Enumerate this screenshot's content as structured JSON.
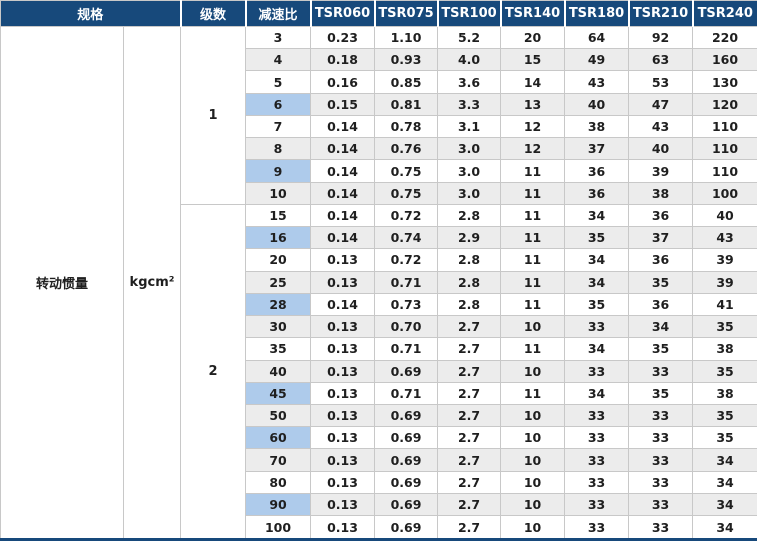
{
  "header": {
    "spec_label": "规格",
    "stage_label": "级数",
    "ratio_label": "减速比",
    "models": [
      "TSR060",
      "TSR075",
      "TSR100",
      "TSR140",
      "TSR180",
      "TSR210",
      "TSR240"
    ]
  },
  "spec": {
    "name": "转动惯量",
    "unit": "kgcm²"
  },
  "colors": {
    "header_bg": "#17497b",
    "header_text": "#ffffff",
    "row_alt_bg": "#ececec",
    "highlight_bg": "#aecbeb",
    "border": "#c8c8c8",
    "bottom_border": "#17497b",
    "body_text": "#1f1f1f"
  },
  "sections": [
    {
      "stage": "1",
      "rows": [
        {
          "ratio": "3",
          "highlight": false,
          "values": [
            "0.23",
            "1.10",
            "5.2",
            "20",
            "64",
            "92",
            "220"
          ]
        },
        {
          "ratio": "4",
          "highlight": false,
          "values": [
            "0.18",
            "0.93",
            "4.0",
            "15",
            "49",
            "63",
            "160"
          ]
        },
        {
          "ratio": "5",
          "highlight": false,
          "values": [
            "0.16",
            "0.85",
            "3.6",
            "14",
            "43",
            "53",
            "130"
          ]
        },
        {
          "ratio": "6",
          "highlight": true,
          "values": [
            "0.15",
            "0.81",
            "3.3",
            "13",
            "40",
            "47",
            "120"
          ]
        },
        {
          "ratio": "7",
          "highlight": false,
          "values": [
            "0.14",
            "0.78",
            "3.1",
            "12",
            "38",
            "43",
            "110"
          ]
        },
        {
          "ratio": "8",
          "highlight": false,
          "values": [
            "0.14",
            "0.76",
            "3.0",
            "12",
            "37",
            "40",
            "110"
          ]
        },
        {
          "ratio": "9",
          "highlight": true,
          "values": [
            "0.14",
            "0.75",
            "3.0",
            "11",
            "36",
            "39",
            "110"
          ]
        },
        {
          "ratio": "10",
          "highlight": false,
          "values": [
            "0.14",
            "0.75",
            "3.0",
            "11",
            "36",
            "38",
            "100"
          ]
        }
      ]
    },
    {
      "stage": "2",
      "rows": [
        {
          "ratio": "15",
          "highlight": false,
          "values": [
            "0.14",
            "0.72",
            "2.8",
            "11",
            "34",
            "36",
            "40"
          ]
        },
        {
          "ratio": "16",
          "highlight": true,
          "values": [
            "0.14",
            "0.74",
            "2.9",
            "11",
            "35",
            "37",
            "43"
          ]
        },
        {
          "ratio": "20",
          "highlight": false,
          "values": [
            "0.13",
            "0.72",
            "2.8",
            "11",
            "34",
            "36",
            "39"
          ]
        },
        {
          "ratio": "25",
          "highlight": false,
          "values": [
            "0.13",
            "0.71",
            "2.8",
            "11",
            "34",
            "35",
            "39"
          ]
        },
        {
          "ratio": "28",
          "highlight": true,
          "values": [
            "0.14",
            "0.73",
            "2.8",
            "11",
            "35",
            "36",
            "41"
          ]
        },
        {
          "ratio": "30",
          "highlight": false,
          "values": [
            "0.13",
            "0.70",
            "2.7",
            "10",
            "33",
            "34",
            "35"
          ]
        },
        {
          "ratio": "35",
          "highlight": false,
          "values": [
            "0.13",
            "0.71",
            "2.7",
            "11",
            "34",
            "35",
            "38"
          ]
        },
        {
          "ratio": "40",
          "highlight": false,
          "values": [
            "0.13",
            "0.69",
            "2.7",
            "10",
            "33",
            "33",
            "35"
          ]
        },
        {
          "ratio": "45",
          "highlight": true,
          "values": [
            "0.13",
            "0.71",
            "2.7",
            "11",
            "34",
            "35",
            "38"
          ]
        },
        {
          "ratio": "50",
          "highlight": false,
          "values": [
            "0.13",
            "0.69",
            "2.7",
            "10",
            "33",
            "33",
            "35"
          ]
        },
        {
          "ratio": "60",
          "highlight": true,
          "values": [
            "0.13",
            "0.69",
            "2.7",
            "10",
            "33",
            "33",
            "35"
          ]
        },
        {
          "ratio": "70",
          "highlight": false,
          "values": [
            "0.13",
            "0.69",
            "2.7",
            "10",
            "33",
            "33",
            "34"
          ]
        },
        {
          "ratio": "80",
          "highlight": false,
          "values": [
            "0.13",
            "0.69",
            "2.7",
            "10",
            "33",
            "33",
            "34"
          ]
        },
        {
          "ratio": "90",
          "highlight": true,
          "values": [
            "0.13",
            "0.69",
            "2.7",
            "10",
            "33",
            "33",
            "34"
          ]
        },
        {
          "ratio": "100",
          "highlight": false,
          "values": [
            "0.13",
            "0.69",
            "2.7",
            "10",
            "33",
            "33",
            "34"
          ]
        }
      ]
    }
  ]
}
